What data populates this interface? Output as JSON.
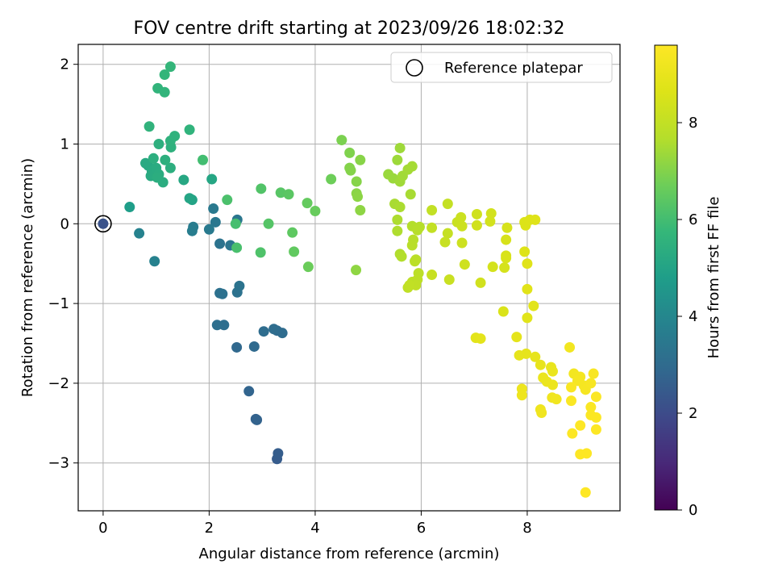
{
  "chart_data": {
    "type": "scatter",
    "title": "FOV centre drift starting at 2023/09/26 18:02:32",
    "xlabel": "Angular distance from reference (arcmin)",
    "ylabel": "Rotation from reference (arcmin)",
    "xlim": [
      -0.47,
      9.75
    ],
    "ylim": [
      -3.6,
      2.25
    ],
    "xticks": [
      0,
      2,
      4,
      6,
      8
    ],
    "yticks": [
      -3,
      -2,
      -1,
      0,
      1,
      2
    ],
    "grid": true,
    "legend": {
      "position": "top-right",
      "entries": [
        {
          "label": "Reference platepar",
          "marker": "open-circle"
        }
      ]
    },
    "reference_point": {
      "x": 0,
      "y": 0
    },
    "colorbar": {
      "label": "Hours from first FF file",
      "min": 0,
      "max": 9.6,
      "ticks": [
        0,
        2,
        4,
        6,
        8
      ],
      "colormap": "viridis"
    },
    "series": [
      {
        "points": [
          [
            0,
            0,
            2.2
          ],
          [
            3.28,
            -2.95,
            2.5
          ],
          [
            3.3,
            -2.88,
            2.55
          ],
          [
            2.88,
            -2.45,
            2.7
          ],
          [
            2.9,
            -2.46,
            2.72
          ],
          [
            2.75,
            -2.1,
            2.8
          ],
          [
            2.52,
            -1.55,
            2.9
          ],
          [
            2.85,
            -1.54,
            2.95
          ],
          [
            3.28,
            -1.34,
            3.0
          ],
          [
            3.38,
            -1.37,
            3.02
          ],
          [
            3.03,
            -1.35,
            3.05
          ],
          [
            3.22,
            -1.32,
            3.08
          ],
          [
            2.28,
            -1.27,
            3.1
          ],
          [
            2.15,
            -1.27,
            3.12
          ],
          [
            2.2,
            -0.87,
            3.2
          ],
          [
            2.25,
            -0.88,
            3.22
          ],
          [
            2.53,
            -0.86,
            3.25
          ],
          [
            2.57,
            -0.78,
            3.28
          ],
          [
            2.2,
            -0.25,
            3.3
          ],
          [
            2.4,
            -0.27,
            3.35
          ],
          [
            2.53,
            0.05,
            3.4
          ],
          [
            2.12,
            0.02,
            3.45
          ],
          [
            2.08,
            0.19,
            3.5
          ],
          [
            2.0,
            -0.07,
            3.55
          ],
          [
            1.7,
            -0.04,
            3.6
          ],
          [
            1.68,
            -0.09,
            3.65
          ],
          [
            0.97,
            -0.47,
            3.8
          ],
          [
            0.68,
            -0.12,
            3.85
          ],
          [
            0.5,
            0.21,
            4.8
          ],
          [
            1.68,
            0.3,
            5.0
          ],
          [
            1.63,
            0.32,
            5.05
          ],
          [
            2.05,
            0.56,
            5.1
          ],
          [
            1.52,
            0.55,
            5.15
          ],
          [
            0.85,
            0.73,
            5.2
          ],
          [
            0.8,
            0.76,
            5.22
          ],
          [
            0.92,
            0.66,
            5.25
          ],
          [
            0.9,
            0.6,
            5.27
          ],
          [
            1.0,
            0.7,
            5.3
          ],
          [
            1.05,
            0.62,
            5.32
          ],
          [
            1.13,
            0.52,
            5.35
          ],
          [
            1.02,
            0.58,
            5.37
          ],
          [
            1.27,
            0.7,
            5.4
          ],
          [
            0.95,
            0.82,
            5.42
          ],
          [
            1.17,
            0.8,
            5.45
          ],
          [
            1.05,
            1.0,
            5.47
          ],
          [
            1.28,
            0.96,
            5.5
          ],
          [
            1.27,
            1.04,
            5.52
          ],
          [
            1.35,
            1.1,
            5.55
          ],
          [
            0.87,
            1.22,
            5.57
          ],
          [
            1.63,
            1.18,
            5.6
          ],
          [
            1.03,
            1.7,
            5.62
          ],
          [
            1.16,
            1.65,
            5.65
          ],
          [
            1.16,
            1.87,
            5.67
          ],
          [
            1.27,
            1.97,
            5.7
          ],
          [
            1.88,
            0.8,
            6.0
          ],
          [
            2.5,
            0.0,
            6.05
          ],
          [
            2.52,
            -0.3,
            6.1
          ],
          [
            2.34,
            0.3,
            6.15
          ],
          [
            2.97,
            -0.36,
            6.2
          ],
          [
            2.98,
            0.44,
            6.25
          ],
          [
            3.12,
            0.0,
            6.3
          ],
          [
            3.35,
            0.39,
            6.35
          ],
          [
            3.5,
            0.37,
            6.4
          ],
          [
            3.57,
            -0.11,
            6.45
          ],
          [
            3.6,
            -0.35,
            6.5
          ],
          [
            3.85,
            0.26,
            6.55
          ],
          [
            4.0,
            0.16,
            6.6
          ],
          [
            3.87,
            -0.54,
            6.65
          ],
          [
            4.3,
            0.56,
            6.7
          ],
          [
            4.5,
            1.05,
            6.9
          ],
          [
            4.65,
            0.89,
            6.95
          ],
          [
            4.65,
            0.7,
            7.0
          ],
          [
            4.67,
            0.67,
            7.02
          ],
          [
            4.78,
            0.53,
            7.05
          ],
          [
            4.85,
            0.8,
            7.07
          ],
          [
            4.78,
            0.38,
            7.1
          ],
          [
            4.8,
            0.34,
            7.12
          ],
          [
            4.85,
            0.17,
            7.15
          ],
          [
            4.77,
            -0.58,
            7.17
          ],
          [
            5.38,
            0.62,
            7.3
          ],
          [
            5.47,
            0.57,
            7.32
          ],
          [
            5.55,
            0.8,
            7.35
          ],
          [
            5.6,
            0.95,
            7.37
          ],
          [
            5.6,
            0.53,
            7.4
          ],
          [
            5.65,
            0.6,
            7.42
          ],
          [
            5.75,
            0.68,
            7.45
          ],
          [
            5.83,
            0.72,
            7.47
          ],
          [
            5.8,
            0.37,
            7.5
          ],
          [
            5.5,
            0.25,
            7.52
          ],
          [
            5.6,
            0.21,
            7.55
          ],
          [
            5.55,
            0.05,
            7.57
          ],
          [
            5.55,
            -0.09,
            7.6
          ],
          [
            5.6,
            -0.38,
            7.62
          ],
          [
            5.63,
            -0.41,
            7.65
          ],
          [
            5.83,
            -0.03,
            7.67
          ],
          [
            5.97,
            -0.04,
            7.7
          ],
          [
            5.93,
            -0.08,
            7.72
          ],
          [
            5.85,
            -0.2,
            7.75
          ],
          [
            5.83,
            -0.27,
            7.77
          ],
          [
            5.9,
            -0.45,
            7.8
          ],
          [
            5.88,
            -0.47,
            7.82
          ],
          [
            5.95,
            -0.62,
            7.85
          ],
          [
            5.93,
            -0.7,
            7.87
          ],
          [
            5.83,
            -0.73,
            7.9
          ],
          [
            5.75,
            -0.8,
            7.92
          ],
          [
            5.9,
            -0.77,
            7.95
          ],
          [
            5.78,
            -0.77,
            7.97
          ],
          [
            6.2,
            0.17,
            8.0
          ],
          [
            6.2,
            -0.05,
            8.02
          ],
          [
            6.5,
            0.25,
            8.05
          ],
          [
            6.5,
            -0.12,
            8.07
          ],
          [
            6.45,
            -0.23,
            8.1
          ],
          [
            6.2,
            -0.64,
            8.12
          ],
          [
            6.53,
            -0.7,
            8.15
          ],
          [
            6.68,
            0.02,
            8.17
          ],
          [
            6.75,
            0.08,
            8.2
          ],
          [
            6.77,
            -0.03,
            8.22
          ],
          [
            6.77,
            -0.24,
            8.25
          ],
          [
            6.82,
            -0.51,
            8.27
          ],
          [
            7.05,
            0.12,
            8.3
          ],
          [
            7.05,
            -0.02,
            8.32
          ],
          [
            7.12,
            -0.74,
            8.35
          ],
          [
            7.32,
            0.13,
            8.37
          ],
          [
            7.3,
            0.03,
            8.4
          ],
          [
            7.35,
            -0.54,
            8.42
          ],
          [
            7.57,
            -0.55,
            8.45
          ],
          [
            7.62,
            -0.05,
            8.47
          ],
          [
            7.6,
            -0.2,
            8.5
          ],
          [
            7.6,
            -0.4,
            8.52
          ],
          [
            7.6,
            -0.43,
            8.55
          ],
          [
            7.55,
            -1.1,
            8.57
          ],
          [
            7.95,
            0.02,
            8.6
          ],
          [
            7.97,
            -0.02,
            8.62
          ],
          [
            8.05,
            0.05,
            8.65
          ],
          [
            7.95,
            -0.35,
            8.67
          ],
          [
            8.15,
            0.05,
            8.7
          ],
          [
            8.0,
            -0.5,
            8.72
          ],
          [
            8.0,
            -0.82,
            8.75
          ],
          [
            8.0,
            -1.18,
            8.77
          ],
          [
            8.12,
            -1.03,
            8.8
          ],
          [
            7.03,
            -1.43,
            8.82
          ],
          [
            7.12,
            -1.44,
            8.85
          ],
          [
            7.8,
            -1.42,
            8.87
          ],
          [
            7.85,
            -1.65,
            8.9
          ],
          [
            7.98,
            -1.63,
            8.92
          ],
          [
            8.15,
            -1.67,
            8.95
          ],
          [
            8.25,
            -1.77,
            8.97
          ],
          [
            8.45,
            -1.8,
            9.0
          ],
          [
            8.48,
            -1.85,
            9.02
          ],
          [
            8.3,
            -1.93,
            9.05
          ],
          [
            8.37,
            -1.98,
            9.07
          ],
          [
            8.48,
            -2.02,
            9.1
          ],
          [
            7.9,
            -2.07,
            9.12
          ],
          [
            7.9,
            -2.15,
            9.15
          ],
          [
            8.25,
            -2.33,
            9.17
          ],
          [
            8.27,
            -2.37,
            9.2
          ],
          [
            8.47,
            -2.18,
            9.22
          ],
          [
            8.55,
            -2.2,
            9.25
          ],
          [
            8.8,
            -1.55,
            9.27
          ],
          [
            8.88,
            -1.88,
            9.3
          ],
          [
            9.0,
            -1.92,
            9.32
          ],
          [
            8.95,
            -1.97,
            9.35
          ],
          [
            9.07,
            -2.03,
            9.37
          ],
          [
            9.1,
            -2.08,
            9.4
          ],
          [
            9.2,
            -2.0,
            9.42
          ],
          [
            9.25,
            -1.88,
            9.45
          ],
          [
            8.83,
            -2.05,
            9.47
          ],
          [
            8.83,
            -2.22,
            9.5
          ],
          [
            9.2,
            -2.3,
            9.52
          ],
          [
            9.3,
            -2.17,
            9.54
          ],
          [
            9.2,
            -2.4,
            9.55
          ],
          [
            9.3,
            -2.43,
            9.56
          ],
          [
            9.3,
            -2.58,
            9.57
          ],
          [
            8.85,
            -2.63,
            9.58
          ],
          [
            9.0,
            -2.53,
            9.59
          ],
          [
            9.0,
            -2.89,
            9.6
          ],
          [
            9.12,
            -2.88,
            9.6
          ],
          [
            9.1,
            -3.37,
            9.6
          ]
        ]
      }
    ]
  }
}
